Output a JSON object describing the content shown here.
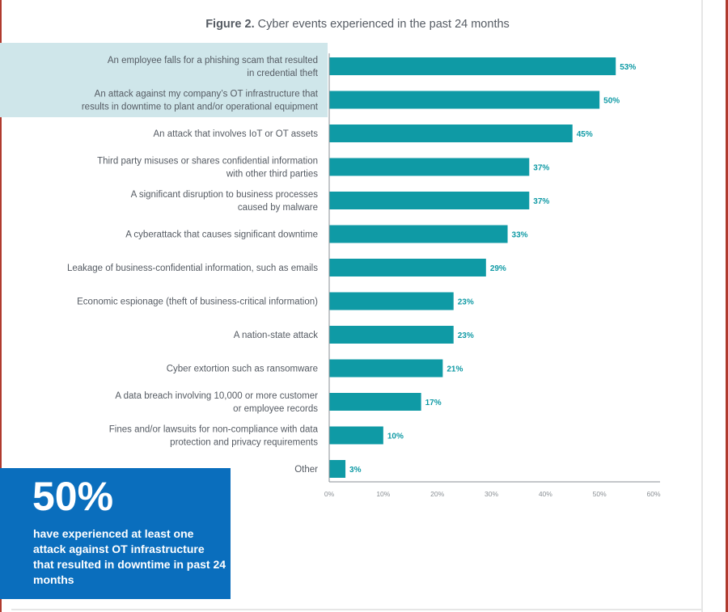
{
  "chart_data": {
    "type": "bar",
    "orientation": "horizontal",
    "title_prefix": "Figure 2.",
    "title": "Cyber events experienced in the past 24 months",
    "categories": [
      [
        "An employee falls for a phishing scam that resulted",
        "in credential theft"
      ],
      [
        "An attack against my company’s OT infrastructure that",
        "results in downtime to plant and/or operational equipment"
      ],
      [
        "An attack that involves IoT or OT assets"
      ],
      [
        "Third party misuses or shares confidential information",
        "with other third parties"
      ],
      [
        "A significant disruption to business processes",
        "caused by malware"
      ],
      [
        "A cyberattack that causes significant downtime"
      ],
      [
        "Leakage of business-confidential information, such as emails"
      ],
      [
        "Economic espionage (theft of business-critical information)"
      ],
      [
        "A nation-state attack"
      ],
      [
        "Cyber extortion such as ransomware"
      ],
      [
        "A data breach involving 10,000 or more customer",
        "or employee records"
      ],
      [
        "Fines and/or lawsuits for non-compliance with data",
        "protection and privacy requirements"
      ],
      [
        "Other"
      ]
    ],
    "values": [
      53,
      50,
      45,
      37,
      37,
      33,
      29,
      23,
      23,
      21,
      17,
      10,
      3
    ],
    "data_labels": [
      "53%",
      "50%",
      "45%",
      "37%",
      "37%",
      "33%",
      "29%",
      "23%",
      "23%",
      "21%",
      "17%",
      "10%",
      "3%"
    ],
    "xlim": [
      0,
      60
    ],
    "xticks": [
      "0%",
      "10%",
      "20%",
      "30%",
      "40%",
      "50%",
      "60%"
    ],
    "grid": false,
    "highlighted_categories": [
      0,
      1
    ],
    "colors": {
      "bar": "#0f9aa5",
      "label": "#0f9aa5",
      "highlight": "#cfe6ea",
      "callout": "#0a6ebd"
    }
  },
  "callout": {
    "stat": "50%",
    "text": "have experienced at least one attack against OT infrastructure that resulted in downtime in past 24 months"
  }
}
